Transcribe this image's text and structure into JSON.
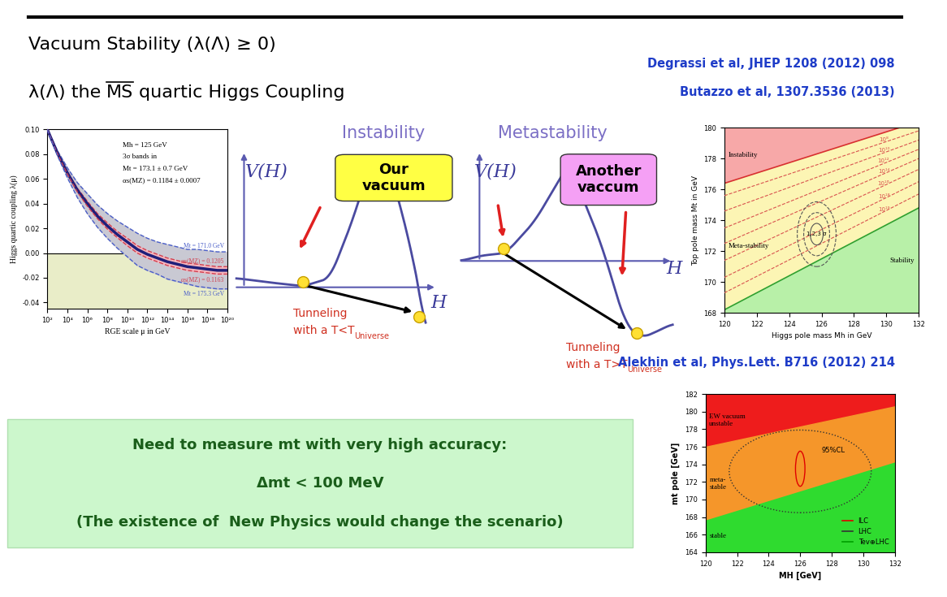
{
  "slide": {
    "title": "Vacuum Stability (λ(Λ) ≥ 0)",
    "subtitle_parts": [
      "λ(Λ) the",
      "MS",
      "quartic Higgs Coupling"
    ],
    "references": [
      "Degrassi et al, JHEP 1208 (2012) 098",
      "Butazzo et al, 1307.3536 (2013)",
      "Alekhin et al, Phys.Lett. B716 (2012) 214"
    ],
    "box": [
      "Need to measure mt with very high accuracy:",
      "Δmt < 100 MeV",
      "(The existence of  New Physics would change the scenario)"
    ]
  },
  "diagrams": [
    {
      "title": "Instability",
      "y_label": "V(H)",
      "x_label": "H",
      "box": "Our\nvacuum",
      "tunneling": "Tunneling",
      "condition": "with a T<T",
      "subscript": "Universe"
    },
    {
      "title": "Metastability",
      "y_label": "V(H)",
      "x_label": "H",
      "box": "Another\nvaccum",
      "tunneling": "Tunneling",
      "condition": "with a T>T",
      "subscript": "Universe"
    }
  ],
  "chart_data": [
    {
      "type": "line",
      "x_label": "RGE scale μ in GeV",
      "y_label": "Higgs quartic coupling λ(μ)",
      "log": "x",
      "xlim": [
        100.0,
        1e+20
      ],
      "xticks": [
        {
          "value": 100.0,
          "label": "10²"
        },
        {
          "value": 10000.0,
          "label": "10⁴"
        },
        {
          "value": 1000000.0,
          "label": "10⁶"
        },
        {
          "value": 100000000.0,
          "label": "10⁸"
        },
        {
          "value": 10000000000.0,
          "label": "10¹⁰"
        },
        {
          "value": 1000000000000.0,
          "label": "10¹²"
        },
        {
          "value": 100000000000000.0,
          "label": "10¹⁴"
        },
        {
          "value": 1e+16,
          "label": "10¹⁶"
        },
        {
          "value": 1e+18,
          "label": "10¹⁸"
        },
        {
          "value": 1e+20,
          "label": "10²⁰"
        }
      ],
      "ylim": [
        -0.045,
        0.1
      ],
      "yticks": [
        -0.04,
        -0.02,
        {
          "value": 0.0,
          "label": "0.00"
        },
        0.02,
        0.04,
        0.06,
        0.08,
        {
          "value": 0.1,
          "label": "0.10"
        }
      ],
      "bound": 0,
      "notes": [
        "Mh = 125 GeV",
        "3σ bands in",
        "Mt = 173.1 ± 0.7 GeV",
        "αs(MZ) = 0.1184 ± 0.0007"
      ],
      "x": [
        100.0,
        1000.0,
        10000.0,
        100000.0,
        1000000.0,
        10000000.0,
        100000000.0,
        1000000000.0,
        10000000000.0,
        100000000000.0,
        1000000000000.0,
        10000000000000.0,
        100000000000000.0,
        1000000000000000.0,
        1e+16,
        1e+17,
        1e+18,
        1e+19,
        1e+20
      ],
      "series": [
        {
          "name": "Mt = 171.0 GeV",
          "color": "#4a5ec8",
          "line_style": "dashed",
          "values": [
            0.1,
            0.083,
            0.069,
            0.057,
            0.048,
            0.039,
            0.032,
            0.026,
            0.021,
            0.016,
            0.012,
            0.009,
            0.007,
            0.005,
            0.003,
            0.003,
            0.002,
            0.001,
            0.001
          ]
        },
        {
          "name": "αs(MZ) = 0.1205",
          "color": "#d04050",
          "line_style": "dashed",
          "values": [
            0.1,
            0.0815,
            0.066,
            0.0525,
            0.042,
            0.032,
            0.0245,
            0.0175,
            0.012,
            0.006,
            0.002,
            -0.001,
            -0.004,
            -0.006,
            -0.008,
            -0.009,
            -0.01,
            -0.011,
            -0.011
          ]
        },
        {
          "color": "#1f1f7a",
          "line_style": "solid",
          "values": [
            0.1,
            0.081,
            0.065,
            0.051,
            0.04,
            0.03,
            0.022,
            0.015,
            0.009,
            0.003,
            -0.001,
            -0.004,
            -0.007,
            -0.009,
            -0.011,
            -0.012,
            -0.013,
            -0.014,
            -0.014
          ]
        },
        {
          "name": "αs(MZ) = 0.1163",
          "color": "#d04050",
          "line_style": "dashed",
          "values": [
            0.1,
            0.0805,
            0.064,
            0.0495,
            0.038,
            0.028,
            0.0195,
            0.0125,
            0.006,
            0.0,
            -0.004,
            -0.007,
            -0.01,
            -0.012,
            -0.014,
            -0.015,
            -0.016,
            -0.017,
            -0.017
          ]
        },
        {
          "name": "Mt = 175.3 GeV",
          "color": "#4a5ec8",
          "line_style": "dashed",
          "values": [
            0.1,
            0.079,
            0.061,
            0.045,
            0.032,
            0.021,
            0.012,
            0.004,
            -0.003,
            -0.01,
            -0.014,
            -0.017,
            -0.021,
            -0.023,
            -0.025,
            -0.027,
            -0.028,
            -0.029,
            -0.029
          ]
        }
      ]
    },
    {
      "type": "area",
      "x_label": "Higgs pole mass Mh in GeV",
      "y_label": "Top pole mass Mt in GeV",
      "xlim": [
        120,
        132
      ],
      "xticks": [
        120,
        122,
        124,
        126,
        128,
        130,
        132
      ],
      "ylim": [
        168,
        180
      ],
      "yticks": [
        168,
        170,
        172,
        174,
        176,
        178,
        180
      ],
      "x": [
        120,
        132
      ],
      "regions": [
        {
          "name": "Instability",
          "color": "#f7a8a8"
        },
        {
          "name": "Meta-stability",
          "color": "#fcf5b4"
        },
        {
          "name": "Stability",
          "color": "#b8f0a8"
        }
      ],
      "boundaries": [
        {
          "values": [
            176.4,
            180.4
          ],
          "color": "#d83030"
        },
        {
          "values": [
            168.2,
            174.8
          ],
          "color": "#30a030"
        }
      ],
      "contours": [
        {
          "name": "10⁸",
          "color": "#d9534f",
          "values": [
            175.6,
            179.8
          ]
        },
        {
          "name": "10¹⁰",
          "color": "#d9534f",
          "values": [
            174.6,
            179.2
          ]
        },
        {
          "name": "10¹²",
          "color": "#d9534f",
          "values": [
            173.5,
            178.6
          ]
        },
        {
          "name": "10¹⁴",
          "color": "#d9534f",
          "values": [
            172.5,
            178.0
          ]
        },
        {
          "name": "10¹⁶",
          "color": "#d9534f",
          "values": [
            171.4,
            177.3
          ]
        },
        {
          "name": "10¹⁸",
          "color": "#d9534f",
          "values": [
            170.3,
            176.5
          ]
        },
        {
          "name": "10¹⁹",
          "color": "#d9534f",
          "values": [
            169.3,
            175.7
          ]
        }
      ],
      "ellipse": {
        "label": "1,2,3 σ",
        "center": [
          125.7,
          173.1
        ],
        "sigma": [
          0.4,
          0.7
        ],
        "levels": [
          1,
          2,
          3
        ]
      }
    },
    {
      "type": "area",
      "x_label": "MH [GeV]",
      "y_label": "mt pole [GeV]",
      "xlim": [
        120,
        132
      ],
      "xticks": [
        120,
        122,
        124,
        126,
        128,
        130,
        132
      ],
      "ylim": [
        164,
        182
      ],
      "yticks": [
        164,
        166,
        168,
        170,
        172,
        174,
        176,
        178,
        180,
        182
      ],
      "x": [
        120,
        132
      ],
      "regions": [
        {
          "name": "EW vacuum\nunstable",
          "color": "#ee1c1c"
        },
        {
          "name": "meta-\nstable",
          "color": "#f5962a"
        },
        {
          "name": "stable",
          "color": "#2fdb2f"
        }
      ],
      "boundaries": [
        {
          "values": [
            176.0,
            180.6
          ]
        },
        {
          "values": [
            167.6,
            174.2
          ]
        }
      ],
      "ellipses": [
        {
          "label": "95%CL",
          "center": [
            126,
            173.2
          ],
          "half_width": [
            4.5,
            4.7
          ],
          "color": "#333333",
          "line_style": "dotted"
        },
        {
          "center": [
            126,
            173.5
          ],
          "half_width": [
            0.3,
            2.0
          ],
          "color": "#e00000",
          "line_style": "solid"
        }
      ],
      "legend": "lower right",
      "legend_entries": [
        {
          "name": "ILC",
          "color": "#e00000"
        },
        {
          "name": "LHC",
          "color": "#333333"
        },
        {
          "name": "Tev⊕LHC",
          "color": "#00a000"
        }
      ]
    }
  ]
}
